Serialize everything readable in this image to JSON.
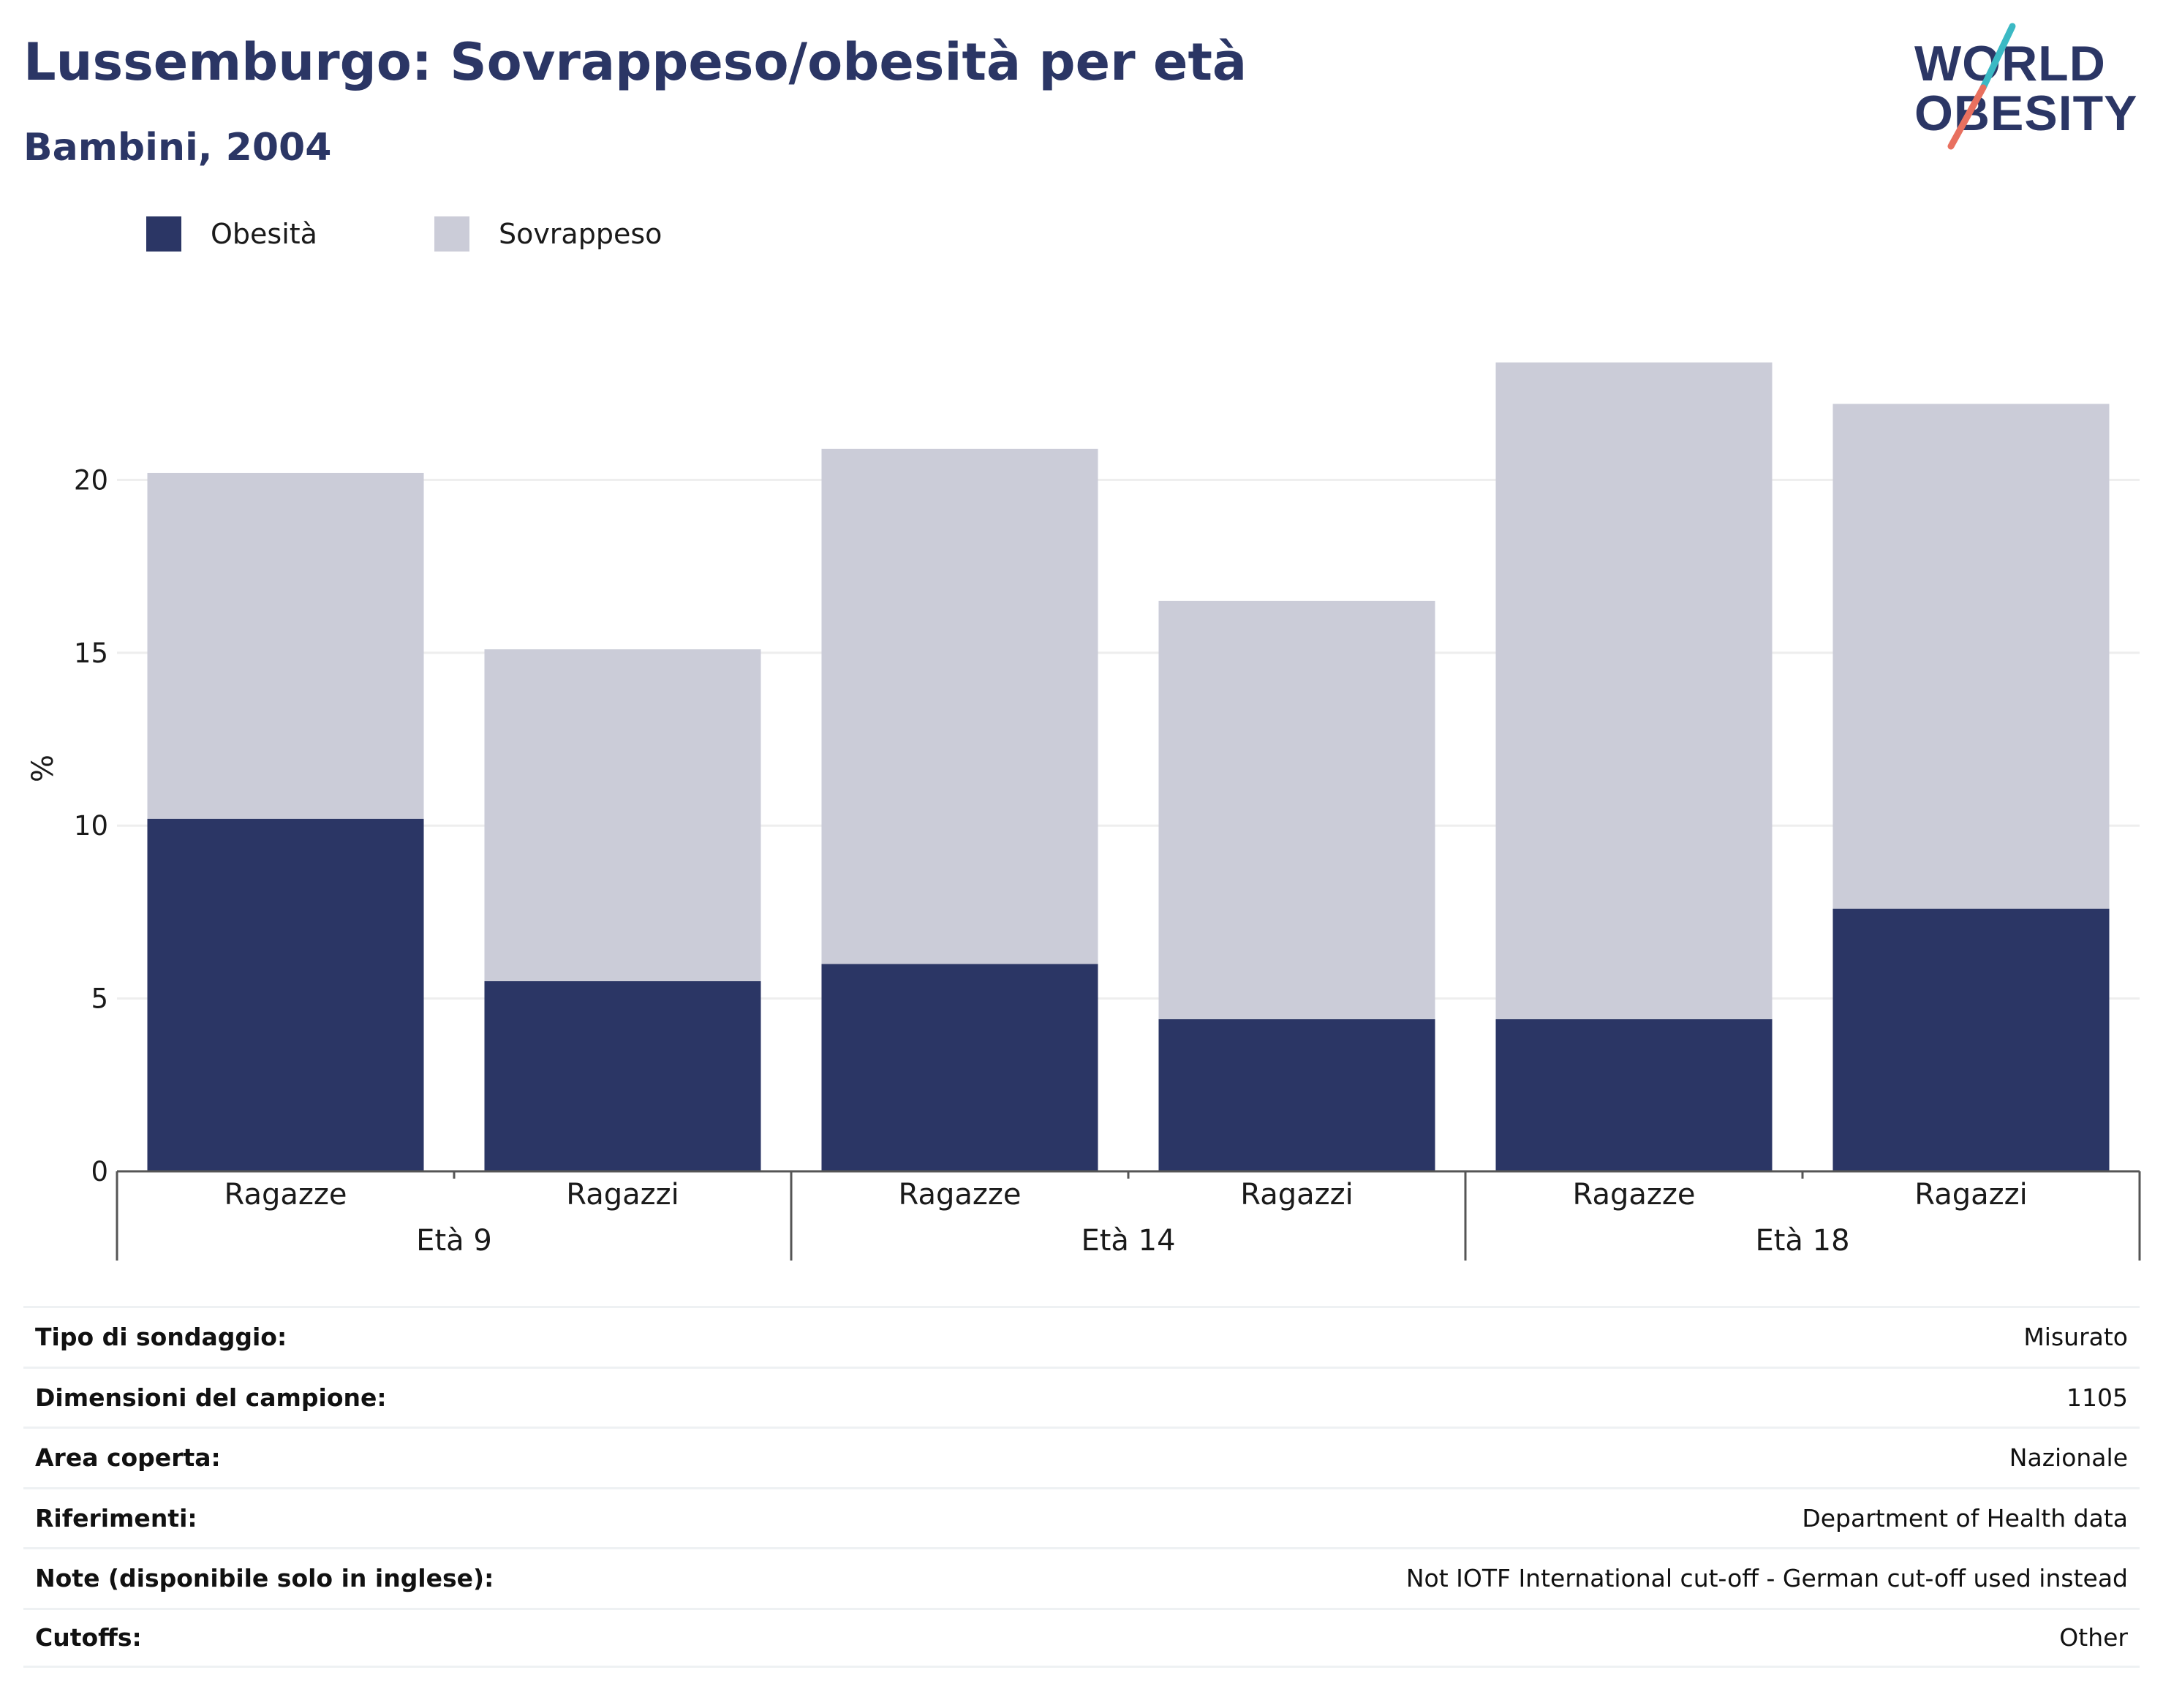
{
  "header": {
    "title": "Lussemburgo: Sovrappeso/obesità per età",
    "subtitle": "Bambini, 2004"
  },
  "logo": {
    "line1": "WORLD",
    "line2": "OBESITY",
    "accent_colors": [
      "#3bb9c4",
      "#e8705f"
    ]
  },
  "colors": {
    "obesity": "#2b3665",
    "overweight": "#cbccd8",
    "text": "#1a1a1a",
    "grid": "#eeeeee"
  },
  "chart_data": {
    "type": "bar",
    "stacked": true,
    "ylabel": "%",
    "ylim": [
      0,
      25
    ],
    "yticks": [
      0,
      5,
      10,
      15,
      20
    ],
    "grid": true,
    "legend_position": "top-left",
    "categories": [
      "Ragazze",
      "Ragazzi",
      "Ragazze",
      "Ragazzi",
      "Ragazze",
      "Ragazzi"
    ],
    "groups": [
      {
        "label": "Età 9",
        "span": 2
      },
      {
        "label": "Età 14",
        "span": 2
      },
      {
        "label": "Età 18",
        "span": 2
      }
    ],
    "series": [
      {
        "name": "Obesità",
        "color": "#2b3665",
        "values": [
          10.2,
          5.5,
          6.0,
          4.4,
          4.4,
          7.6
        ]
      },
      {
        "name": "Sovrappeso",
        "color": "#cbccd8",
        "values": [
          10.0,
          9.6,
          14.9,
          12.1,
          19.0,
          14.6
        ]
      }
    ]
  },
  "info_table": [
    {
      "key": "Tipo di sondaggio:",
      "value": "Misurato"
    },
    {
      "key": "Dimensioni del campione:",
      "value": "1105"
    },
    {
      "key": "Area coperta:",
      "value": "Nazionale"
    },
    {
      "key": "Riferimenti:",
      "value": "Department of Health data"
    },
    {
      "key": "Note (disponibile solo in inglese):",
      "value": "Not IOTF International cut-off - German cut-off used instead"
    },
    {
      "key": "Cutoffs:",
      "value": "Other"
    }
  ]
}
